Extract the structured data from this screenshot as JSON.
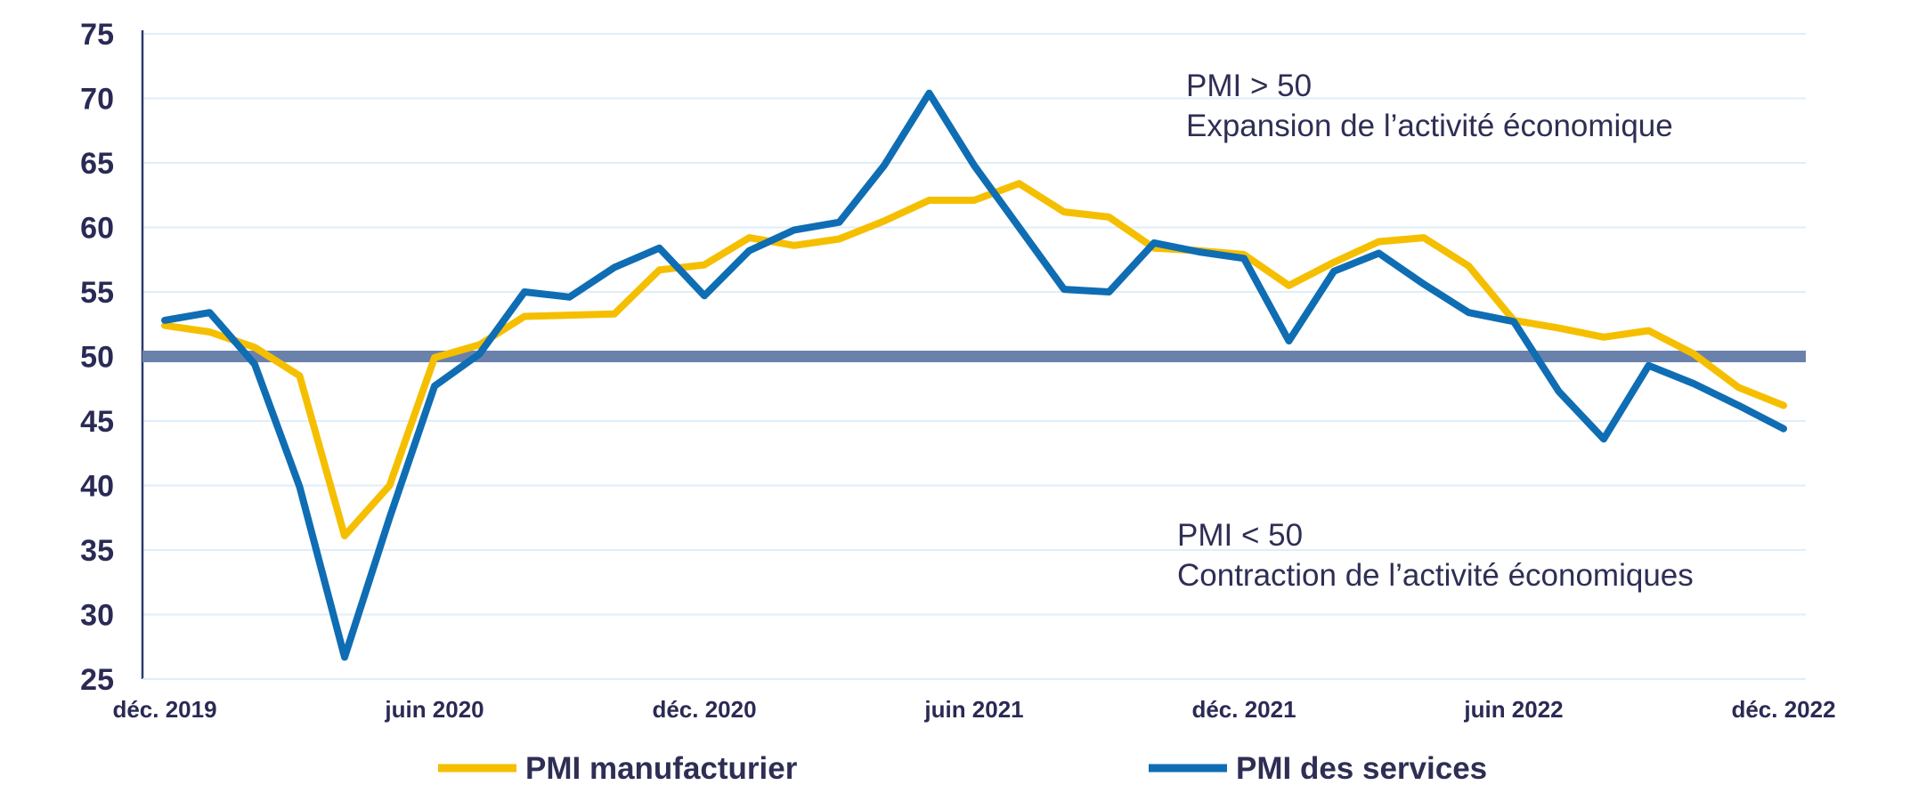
{
  "chart_data": {
    "type": "line",
    "x": [
      "déc. 2019",
      "janv. 2020",
      "févr. 2020",
      "mars 2020",
      "avr. 2020",
      "mai 2020",
      "juin 2020",
      "juil. 2020",
      "août 2020",
      "sept. 2020",
      "oct. 2020",
      "nov. 2020",
      "déc. 2020",
      "janv. 2021",
      "févr. 2021",
      "mars 2021",
      "avr. 2021",
      "mai 2021",
      "juin 2021",
      "juil. 2021",
      "août 2021",
      "sept. 2021",
      "oct. 2021",
      "nov. 2021",
      "déc. 2021",
      "janv. 2022",
      "févr. 2022",
      "mars 2022",
      "avr. 2022",
      "mai 2022",
      "juin 2022",
      "juil. 2022",
      "août 2022",
      "sept. 2022",
      "oct. 2022",
      "nov. 2022",
      "déc. 2022"
    ],
    "xticks": [
      {
        "label": "déc. 2019",
        "index": 0
      },
      {
        "label": "juin 2020",
        "index": 6
      },
      {
        "label": "déc. 2020",
        "index": 12
      },
      {
        "label": "juin 2021",
        "index": 18
      },
      {
        "label": "déc. 2021",
        "index": 24
      },
      {
        "label": "juin 2022",
        "index": 30
      },
      {
        "label": "déc. 2022",
        "index": 36
      }
    ],
    "yticks": [
      75,
      70,
      65,
      60,
      55,
      50,
      45,
      40,
      35,
      30,
      25
    ],
    "ylim": [
      25,
      75
    ],
    "threshold": 50,
    "series": [
      {
        "name": "PMI manufacturier",
        "color": "#f5bf00",
        "values": [
          52.4,
          51.9,
          50.7,
          48.5,
          36.1,
          40.0,
          49.9,
          50.9,
          53.1,
          53.2,
          53.3,
          56.7,
          57.1,
          59.2,
          58.6,
          59.1,
          60.5,
          62.1,
          62.1,
          63.4,
          61.2,
          60.8,
          58.4,
          58.2,
          57.9,
          55.5,
          57.3,
          58.9,
          59.2,
          57.0,
          52.8,
          52.2,
          51.5,
          52.0,
          50.2,
          47.6,
          46.2
        ]
      },
      {
        "name": "PMI des services",
        "color": "#0f6db3",
        "values": [
          52.8,
          53.4,
          49.4,
          39.9,
          26.7,
          37.5,
          47.7,
          50.2,
          55.0,
          54.6,
          56.9,
          58.4,
          54.7,
          58.2,
          59.8,
          60.4,
          64.8,
          70.4,
          64.8,
          60.0,
          55.2,
          55.0,
          58.8,
          58.1,
          57.6,
          51.2,
          56.6,
          58.0,
          55.6,
          53.4,
          52.7,
          47.3,
          43.6,
          49.3,
          47.9,
          46.2,
          44.4
        ]
      }
    ],
    "annotations": {
      "above_line1": "PMI > 50",
      "above_line2": "Expansion de l’activité  économique",
      "below_line1": "PMI < 50",
      "below_line2": "Contraction de l’activité  économiques"
    },
    "legend": [
      "PMI manufacturier",
      "PMI des services"
    ],
    "grid": true,
    "legend_position": "bottom"
  },
  "colors": {
    "threshold_line": "#6a82ab",
    "grid": "#dfeefa",
    "axis": "#2d3a6e"
  }
}
